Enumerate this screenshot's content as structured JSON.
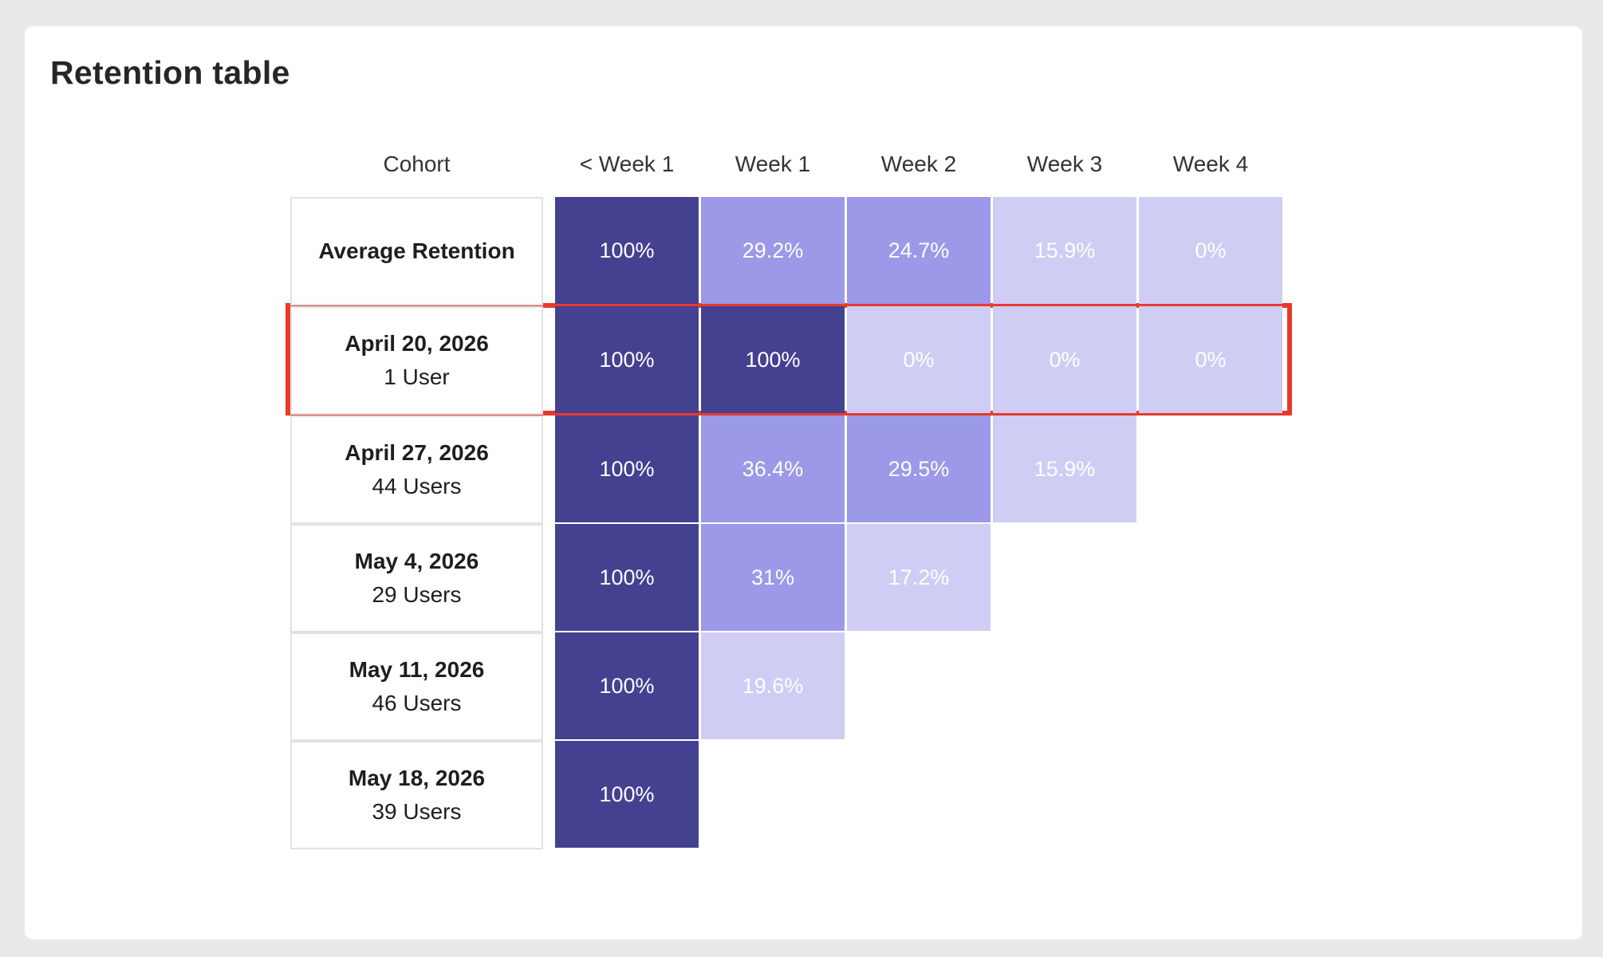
{
  "title": "Retention table",
  "chart_data": {
    "type": "table",
    "columns": [
      "Cohort",
      "< Week 1",
      "Week 1",
      "Week 2",
      "Week 3",
      "Week 4"
    ],
    "rows": [
      {
        "date": "Average Retention",
        "users": "",
        "values": [
          "100%",
          "29.2%",
          "24.7%",
          "15.9%",
          "0%"
        ]
      },
      {
        "date": "April 20, 2026",
        "users": "1 User",
        "values": [
          "100%",
          "100%",
          "0%",
          "0%",
          "0%"
        ]
      },
      {
        "date": "April 27, 2026",
        "users": "44 Users",
        "values": [
          "100%",
          "36.4%",
          "29.5%",
          "15.9%"
        ]
      },
      {
        "date": "May 4, 2026",
        "users": "29 Users",
        "values": [
          "100%",
          "31%",
          "17.2%"
        ]
      },
      {
        "date": "May 11, 2026",
        "users": "46 Users",
        "values": [
          "100%",
          "19.6%"
        ]
      },
      {
        "date": "May 18, 2026",
        "users": "39 Users",
        "values": [
          "100%"
        ]
      }
    ],
    "highlighted_row": 1,
    "colors": {
      "dark": "#454191",
      "medium": "#9b99e8",
      "light": "#cfcdf4",
      "highlight": "#e8392b"
    }
  }
}
